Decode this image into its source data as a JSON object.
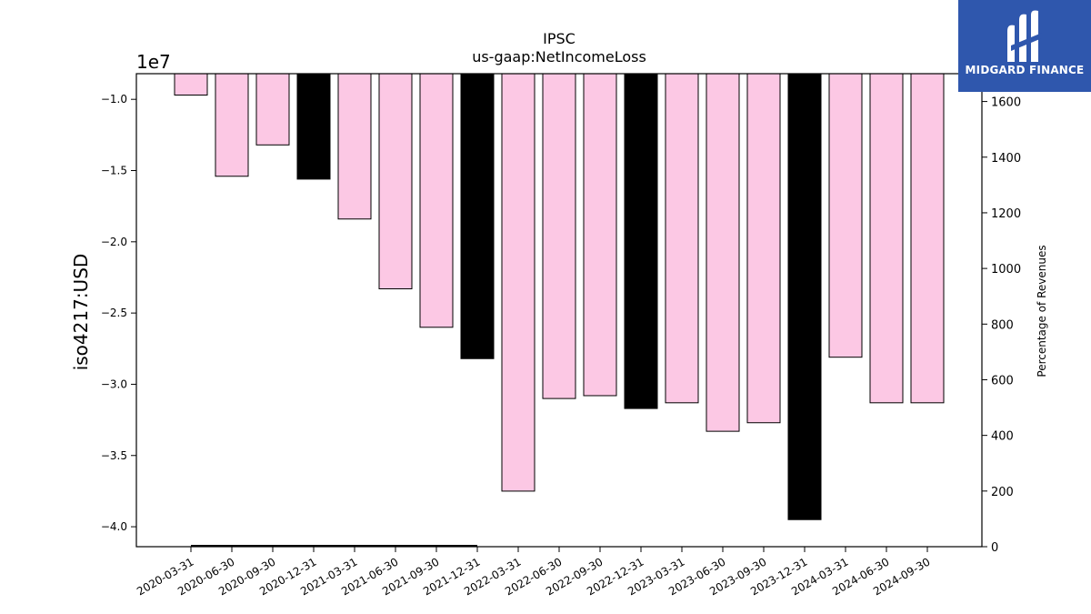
{
  "brand": {
    "name": "MIDGARD FINANCE",
    "color": "#2f57ad",
    "icon": "midgard-logo-icon"
  },
  "chart_data": {
    "type": "bar",
    "title": "IPSC",
    "subtitle": "us-gaap:NetIncomeLoss",
    "ylabel": "iso4217:USD",
    "y_offset_label": "1e7",
    "y2label": "Percentage of Revenues",
    "ylim": [
      -41400000,
      -8200000
    ],
    "y2lim": [
      0,
      1700
    ],
    "yticks": [
      -1.0,
      -1.5,
      -2.0,
      -2.5,
      -3.0,
      -3.5,
      -4.0
    ],
    "y2ticks": [
      0,
      200,
      400,
      600,
      800,
      1000,
      1200,
      1400,
      1600
    ],
    "grid": false,
    "categories": [
      "2020-03-31",
      "2020-06-30",
      "2020-09-30",
      "2020-12-31",
      "2021-03-31",
      "2021-06-30",
      "2021-09-30",
      "2021-12-31",
      "2022-03-31",
      "2022-06-30",
      "2022-09-30",
      "2022-12-31",
      "2023-03-31",
      "2023-06-30",
      "2023-09-30",
      "2023-12-31",
      "2024-03-31",
      "2024-06-30",
      "2024-09-30"
    ],
    "values": [
      -9700000,
      -15400000,
      -13200000,
      -15600000,
      -18400000,
      -23300000,
      -26000000,
      -28200000,
      -37500000,
      -31000000,
      -30800000,
      -31700000,
      -31300000,
      -33300000,
      -32700000,
      -39500000,
      -28100000,
      -31300000,
      -31300000
    ],
    "annual": [
      false,
      false,
      false,
      true,
      false,
      false,
      false,
      true,
      false,
      false,
      false,
      true,
      false,
      false,
      false,
      true,
      false,
      false,
      false
    ],
    "colors": {
      "quarter": "#fcc8e4",
      "annual": "#000000"
    },
    "secondary_line": {
      "name": "",
      "x_range": [
        "2020-03-31",
        "2021-12-31"
      ],
      "value": 0
    }
  }
}
